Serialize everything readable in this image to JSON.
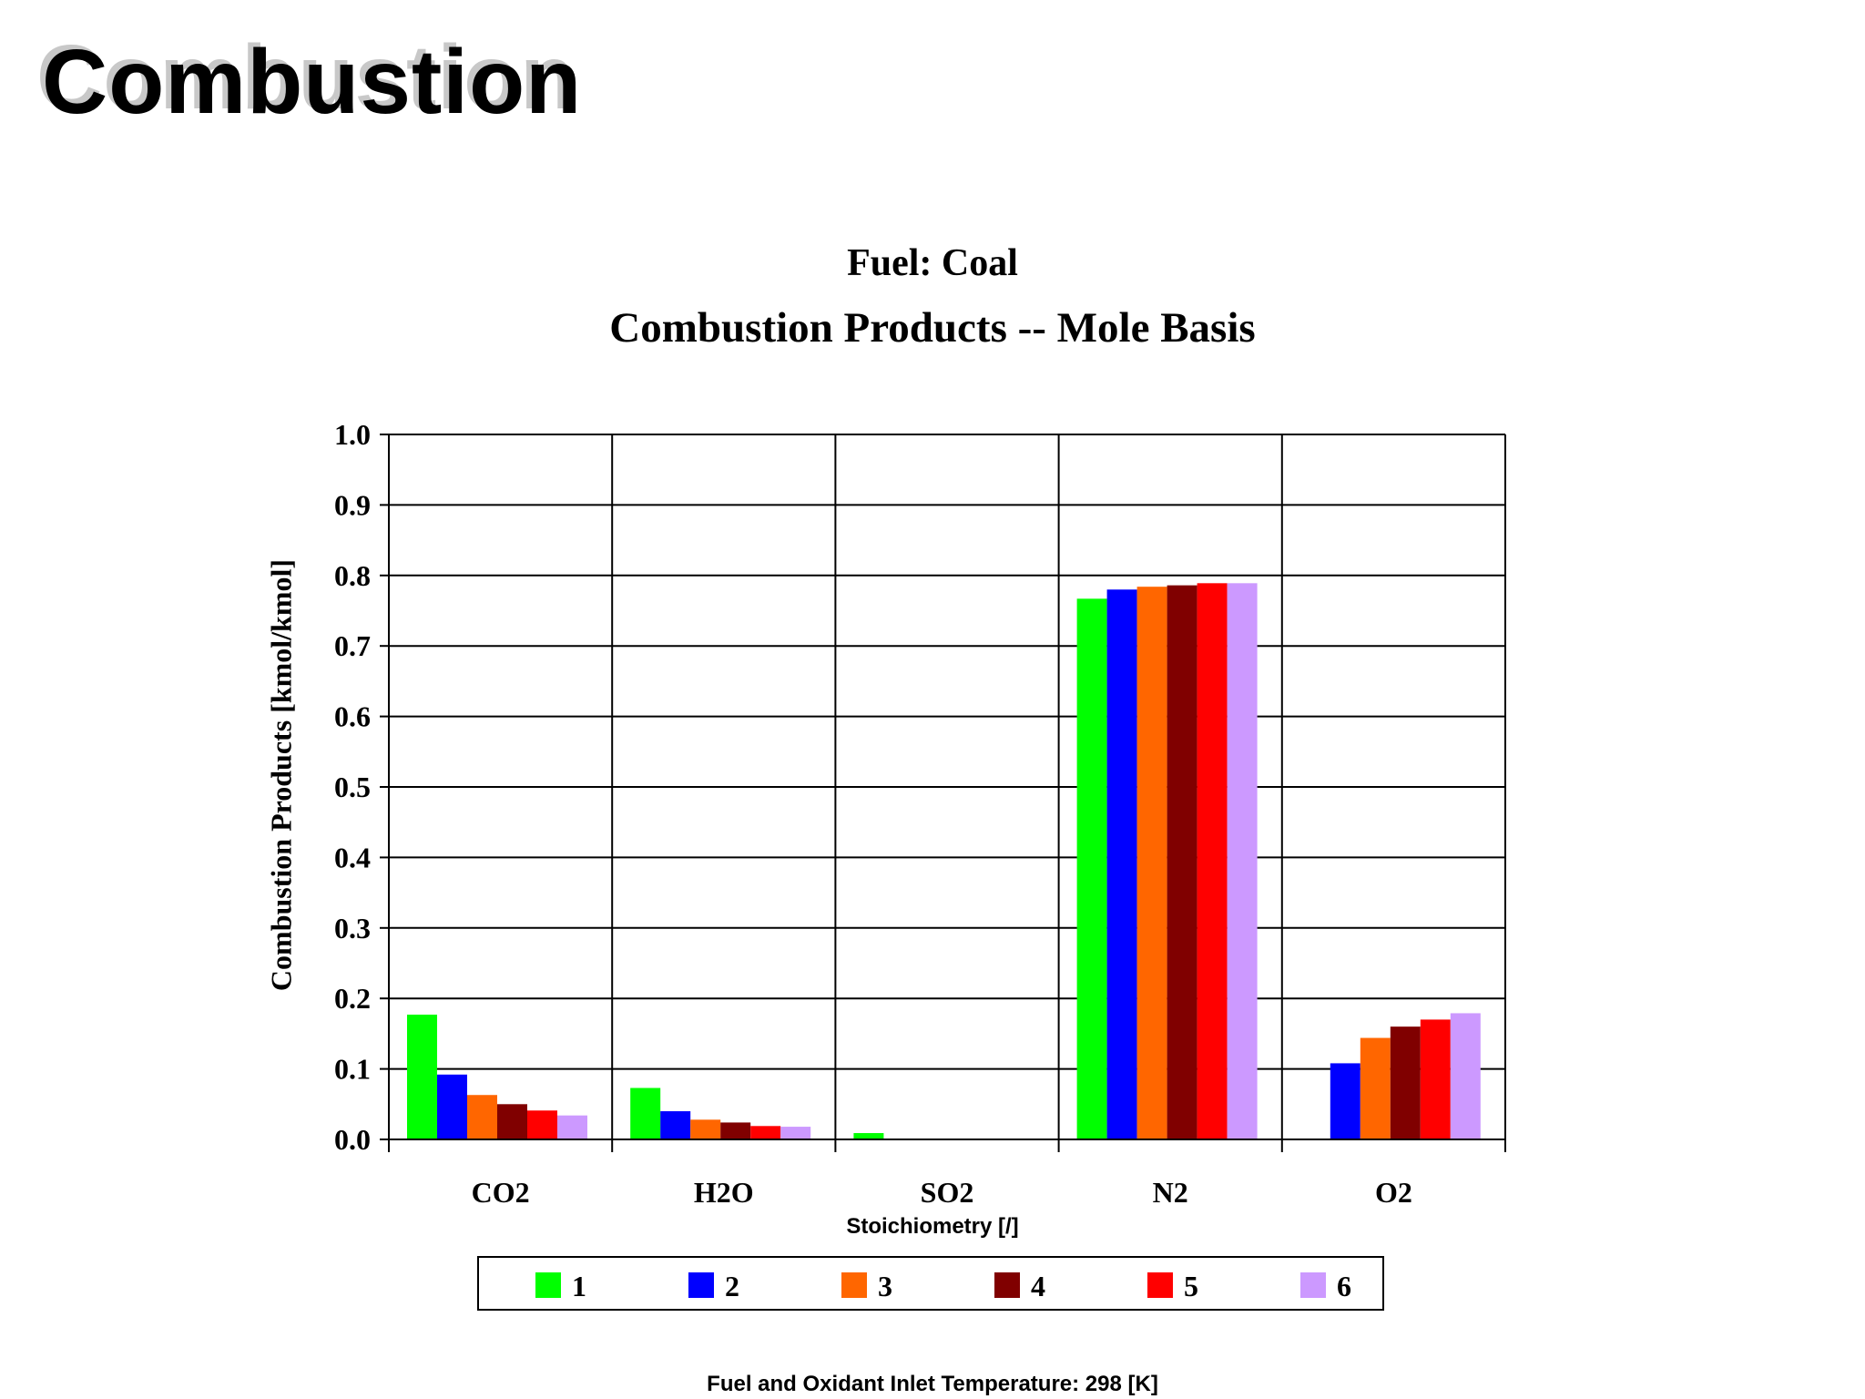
{
  "slide": {
    "title": "Combustion",
    "footer": "Fuel and Oxidant Inlet Temperature:  298 [K]"
  },
  "chart_data": {
    "type": "bar",
    "title": "Fuel:  Coal",
    "subtitle": "Combustion Products -- Mole Basis",
    "xlabel": "Stoichiometry [/]",
    "ylabel": "Combustion Products [kmol/kmol]",
    "ylim": [
      0,
      1
    ],
    "yticks": [
      "0.0",
      "0.1",
      "0.2",
      "0.3",
      "0.4",
      "0.5",
      "0.6",
      "0.7",
      "0.8",
      "0.9",
      "1.0"
    ],
    "categories": [
      "CO2",
      "H2O",
      "SO2",
      "N2",
      "O2"
    ],
    "grid": true,
    "legend_position": "bottom",
    "series": [
      {
        "name": "1",
        "color": "#00ff00",
        "values": [
          0.177,
          0.073,
          0.009,
          0.767,
          0.0
        ]
      },
      {
        "name": "2",
        "color": "#0000ff",
        "values": [
          0.092,
          0.04,
          0.0,
          0.78,
          0.108
        ]
      },
      {
        "name": "3",
        "color": "#ff6600",
        "values": [
          0.063,
          0.028,
          0.0,
          0.784,
          0.144
        ]
      },
      {
        "name": "4",
        "color": "#800000",
        "values": [
          0.05,
          0.024,
          0.0,
          0.786,
          0.16
        ]
      },
      {
        "name": "5",
        "color": "#ff0000",
        "values": [
          0.041,
          0.019,
          0.0,
          0.789,
          0.17
        ]
      },
      {
        "name": "6",
        "color": "#cc99ff",
        "values": [
          0.034,
          0.018,
          0.0,
          0.789,
          0.179
        ]
      }
    ]
  }
}
